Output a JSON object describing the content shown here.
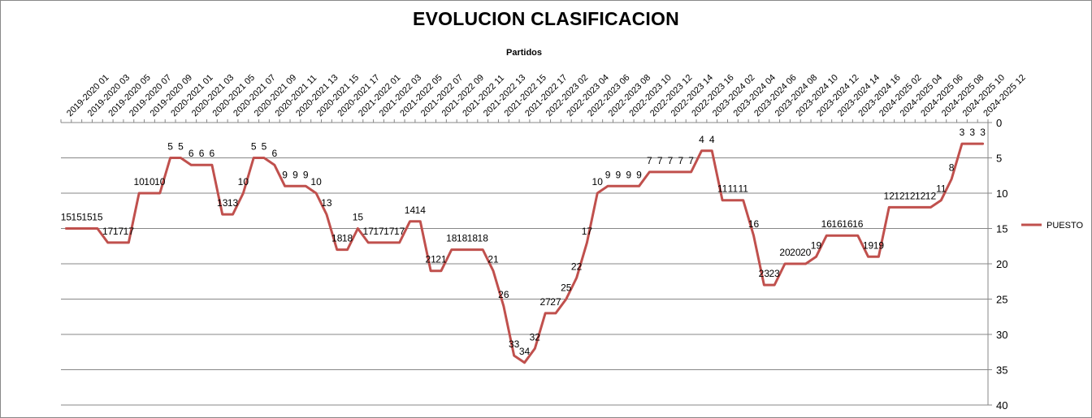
{
  "title": "EVOLUCION CLASIFICACION",
  "chart_data": {
    "type": "line",
    "title": "EVOLUCION CLASIFICACION",
    "xlabel": "Partidos",
    "ylabel": "",
    "ylim": [
      0,
      40
    ],
    "y_reversed": true,
    "y_ticks": [
      0,
      5,
      10,
      15,
      20,
      25,
      30,
      35,
      40
    ],
    "y_axis_side": "right",
    "grid": true,
    "legend_position": "right",
    "x_tick_labels": [
      "2019-2020 01",
      "2019-2020 03",
      "2019-2020 05",
      "2019-2020 07",
      "2019-2020 09",
      "2020-2021 01",
      "2020-2021 03",
      "2020-2021 05",
      "2020-2021 07",
      "2020-2021 09",
      "2020-2021 11",
      "2020-2021 13",
      "2020-2021 15",
      "2020-2021 17",
      "2021-2022 01",
      "2021-2022 03",
      "2021-2022 05",
      "2021-2022 07",
      "2021-2022 09",
      "2021-2022 11",
      "2021-2022 13",
      "2021-2022 15",
      "2021-2022 17",
      "2022-2023 02",
      "2022-2023 04",
      "2022-2023 06",
      "2022-2023 08",
      "2022-2023 10",
      "2022-2023 12",
      "2022-2023 14",
      "2022-2023 16",
      "2023-2024 02",
      "2023-2024 04",
      "2023-2024 06",
      "2023-2024 08",
      "2023-2024 10",
      "2023-2024 12",
      "2023-2024 14",
      "2023-2024 16",
      "2024-2025 02",
      "2024-2025 04",
      "2024-2025 06",
      "2024-2025 08",
      "2024-2025 10",
      "2024-2025 12"
    ],
    "series": [
      {
        "name": "PUESTO",
        "color": "#c0504d",
        "values": [
          15,
          15,
          15,
          15,
          17,
          17,
          17,
          10,
          10,
          10,
          5,
          5,
          6,
          6,
          6,
          13,
          13,
          10,
          5,
          5,
          6,
          9,
          9,
          9,
          10,
          13,
          18,
          18,
          15,
          17,
          17,
          17,
          17,
          14,
          14,
          21,
          21,
          18,
          18,
          18,
          18,
          21,
          26,
          33,
          34,
          32,
          27,
          27,
          25,
          22,
          17,
          10,
          9,
          9,
          9,
          9,
          7,
          7,
          7,
          7,
          7,
          4,
          4,
          11,
          11,
          11,
          16,
          23,
          23,
          20,
          20,
          20,
          19,
          16,
          16,
          16,
          16,
          19,
          19,
          12,
          12,
          12,
          12,
          12,
          11,
          8,
          3,
          3,
          3
        ]
      }
    ]
  }
}
